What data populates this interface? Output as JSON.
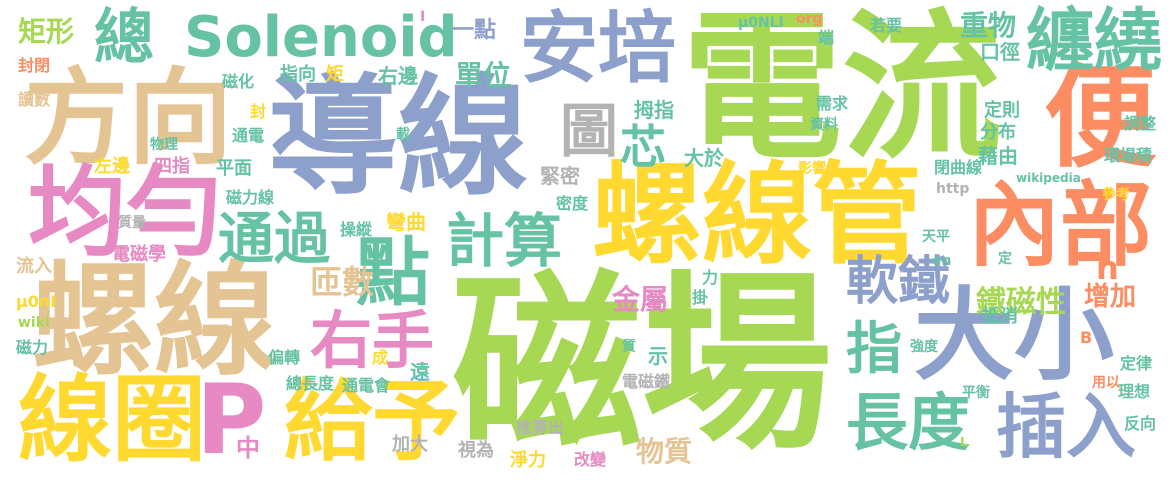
{
  "palette": {
    "green": "#a6d854",
    "blue": "#8da0cb",
    "yellow": "#ffd92f",
    "tan": "#e5c494",
    "pink": "#e78ac3",
    "teal": "#66c2a5",
    "orange": "#fc8d62",
    "gray": "#b3b3b3"
  },
  "words": [
    {
      "text": "磁場",
      "color": "green"
    },
    {
      "text": "電流",
      "color": "green"
    },
    {
      "text": "導線",
      "color": "blue"
    },
    {
      "text": "螺線管",
      "color": "yellow"
    },
    {
      "text": "螺線",
      "color": "tan"
    },
    {
      "text": "方向",
      "color": "tan"
    },
    {
      "text": "均勻",
      "color": "pink"
    },
    {
      "text": "便",
      "color": "orange"
    },
    {
      "text": "內部",
      "color": "orange"
    },
    {
      "text": "大小",
      "color": "blue"
    },
    {
      "text": "線圈",
      "color": "yellow"
    },
    {
      "text": "P",
      "color": "pink"
    },
    {
      "text": "給予",
      "color": "yellow"
    },
    {
      "text": "Solenoid",
      "color": "teal"
    },
    {
      "text": "安培",
      "color": "blue"
    },
    {
      "text": "纏繞",
      "color": "teal"
    },
    {
      "text": "總",
      "color": "teal"
    },
    {
      "text": "點",
      "color": "teal"
    },
    {
      "text": "通過",
      "color": "teal"
    },
    {
      "text": "計算",
      "color": "teal"
    },
    {
      "text": "圖",
      "color": "gray"
    },
    {
      "text": "右手",
      "color": "pink"
    },
    {
      "text": "插入",
      "color": "blue"
    },
    {
      "text": "長度",
      "color": "teal"
    },
    {
      "text": "軟鐵",
      "color": "blue"
    },
    {
      "text": "指",
      "color": "teal"
    },
    {
      "text": "芯",
      "color": "teal"
    },
    {
      "text": "矩形",
      "color": "green"
    },
    {
      "text": "重物",
      "color": "teal"
    },
    {
      "text": "口徑",
      "color": "teal"
    },
    {
      "text": "單位",
      "color": "teal"
    },
    {
      "text": "一點",
      "color": "blue"
    },
    {
      "text": "匝數",
      "color": "tan"
    },
    {
      "text": "鐵磁性",
      "color": "green"
    },
    {
      "text": "增加",
      "color": "orange"
    },
    {
      "text": "金屬",
      "color": "pink"
    },
    {
      "text": "物質",
      "color": "tan"
    },
    {
      "text": "n",
      "color": "orange"
    },
    {
      "text": "中",
      "color": "pink"
    },
    {
      "text": "封閉",
      "color": "orange"
    },
    {
      "text": "讀數",
      "color": "tan"
    },
    {
      "text": "磁化",
      "color": "teal"
    },
    {
      "text": "指向",
      "color": "teal"
    },
    {
      "text": "矩",
      "color": "yellow"
    },
    {
      "text": "右邊",
      "color": "teal"
    },
    {
      "text": "拇指",
      "color": "teal"
    },
    {
      "text": "大於",
      "color": "teal"
    },
    {
      "text": "緊密",
      "color": "gray"
    },
    {
      "text": "密度",
      "color": "teal"
    },
    {
      "text": "彎曲",
      "color": "yellow"
    },
    {
      "text": "操縱",
      "color": "teal"
    },
    {
      "text": "磁力線",
      "color": "teal"
    },
    {
      "text": "左邊",
      "color": "yellow"
    },
    {
      "text": "四指",
      "color": "pink"
    },
    {
      "text": "平面",
      "color": "teal"
    },
    {
      "text": "物理",
      "color": "teal"
    },
    {
      "text": "通電",
      "color": "teal"
    },
    {
      "text": "質量",
      "color": "gray"
    },
    {
      "text": "電磁學",
      "color": "pink"
    },
    {
      "text": "流入",
      "color": "tan"
    },
    {
      "text": "μ0nI",
      "color": "yellow"
    },
    {
      "text": "wiki",
      "color": "green"
    },
    {
      "text": "磁力",
      "color": "teal"
    },
    {
      "text": "總長度",
      "color": "teal"
    },
    {
      "text": "通電會",
      "color": "teal"
    },
    {
      "text": "遠",
      "color": "teal"
    },
    {
      "text": "成",
      "color": "yellow"
    },
    {
      "text": "偏轉",
      "color": "teal"
    },
    {
      "text": "加大",
      "color": "gray"
    },
    {
      "text": "視為",
      "color": "gray"
    },
    {
      "text": "推算出",
      "color": "gray"
    },
    {
      "text": "淨力",
      "color": "yellow"
    },
    {
      "text": "改變",
      "color": "pink"
    },
    {
      "text": "電磁鐵",
      "color": "gray"
    },
    {
      "text": "示",
      "color": "teal"
    },
    {
      "text": "質",
      "color": "teal"
    },
    {
      "text": "力",
      "color": "teal"
    },
    {
      "text": "掛",
      "color": "teal"
    },
    {
      "text": "μ0NLI",
      "color": "teal"
    },
    {
      "text": "org",
      "color": "orange"
    },
    {
      "text": "端",
      "color": "teal"
    },
    {
      "text": "若要",
      "color": "teal"
    },
    {
      "text": "定則",
      "color": "teal"
    },
    {
      "text": "需求",
      "color": "teal"
    },
    {
      "text": "資料",
      "color": "teal"
    },
    {
      "text": "分布",
      "color": "teal"
    },
    {
      "text": "藉由",
      "color": "teal"
    },
    {
      "text": "調整",
      "color": "teal"
    },
    {
      "text": "環場積",
      "color": "teal"
    },
    {
      "text": "閉曲線",
      "color": "teal"
    },
    {
      "text": "影響",
      "color": "yellow"
    },
    {
      "text": "http",
      "color": "gray"
    },
    {
      "text": "wikipedia",
      "color": "teal"
    },
    {
      "text": "參考",
      "color": "yellow"
    },
    {
      "text": "天平",
      "color": "teal"
    },
    {
      "text": "en",
      "color": "teal"
    },
    {
      "text": "定",
      "color": "teal"
    },
    {
      "text": "抵消",
      "color": "teal"
    },
    {
      "text": "強度",
      "color": "teal"
    },
    {
      "text": "平衡",
      "color": "teal"
    },
    {
      "text": "定律",
      "color": "teal"
    },
    {
      "text": "用以",
      "color": "orange"
    },
    {
      "text": "理想",
      "color": "teal"
    },
    {
      "text": "反向",
      "color": "teal"
    },
    {
      "text": "B",
      "color": "orange"
    },
    {
      "text": "L",
      "color": "green"
    },
    {
      "text": "載",
      "color": "teal"
    },
    {
      "text": "封",
      "color": "yellow"
    },
    {
      "text": "I",
      "color": "pink"
    }
  ]
}
